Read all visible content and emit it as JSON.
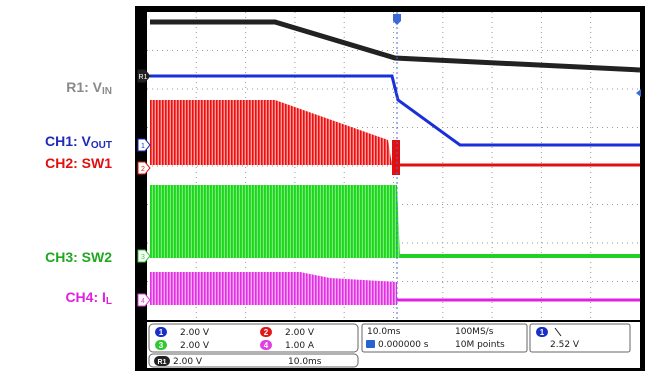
{
  "labels": [
    {
      "main": "R1: V",
      "sub": "IN",
      "color": "#8a8a8a",
      "y": 0
    },
    {
      "main": "CH1: V",
      "sub": "OUT",
      "color": "#1f2bb8"
    },
    {
      "main": "CH2: SW1",
      "color": "#e01010"
    },
    {
      "main": "CH3: SW2",
      "color": "#1fa81f"
    },
    {
      "main": "CH4: I",
      "sub": "L",
      "color": "#e020e0"
    }
  ],
  "channels": [
    {
      "id": "1",
      "scale": "2.00 V",
      "color": "#1a2fc8"
    },
    {
      "id": "2",
      "scale": "2.00 V",
      "color": "#e01818"
    },
    {
      "id": "3",
      "scale": "2.00 V",
      "color": "#33c833"
    },
    {
      "id": "4",
      "scale": "1.00 A",
      "color": "#e040e0"
    }
  ],
  "reference": {
    "id": "R1",
    "scale": "2.00 V",
    "time": "10.0ms"
  },
  "acquisition": {
    "timebase": "10.0ms",
    "sample_rate": "100MS/s",
    "trigger_position": "0.000000 s",
    "record_length": "10M points"
  },
  "trigger": {
    "source": "1",
    "level": "2.52 V"
  }
}
